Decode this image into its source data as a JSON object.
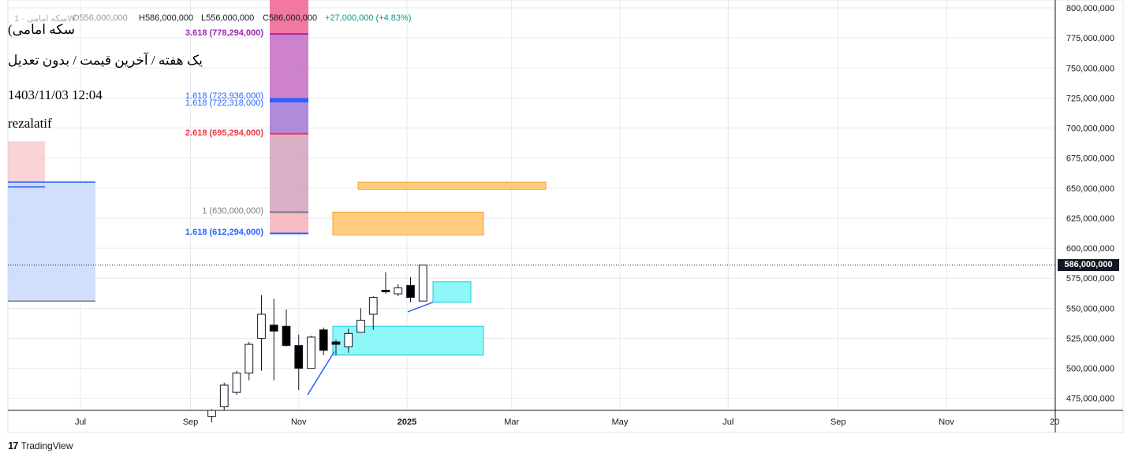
{
  "header": {
    "symbol_line": "سکه امامی · 1W",
    "ohlc_open": "O556,000,000",
    "ohlc_high": "H586,000,000",
    "ohlc_low": "L556,000,000",
    "ohlc_close": "C586,000,000",
    "change": "+27,000,000 (+4.83%)"
  },
  "overlay": {
    "title": "(سکه امامی",
    "subtitle": "یک هفته / آخرین قیمت / بدون تعدیل",
    "datetime": "1403/11/03 12:04",
    "author": "rezalatif"
  },
  "fib_labels": [
    {
      "text": "3.618 (778,294,000)",
      "color": "#9c27b0",
      "value": 778294000
    },
    {
      "text": "1.618 (723,936,000)",
      "color": "#2962ff",
      "value": 723936000
    },
    {
      "text": "1.618 (722,318,000)",
      "color": "#2962ff",
      "value": 722318000
    },
    {
      "text": "2.618 (695,294,000)",
      "color": "#f23645",
      "value": 695294000
    },
    {
      "text": "1 (630,000,000)",
      "color": "#787b86",
      "value": 630000000
    },
    {
      "text": "1.618 (612,294,000)",
      "color": "#2962ff",
      "value": 612294000
    }
  ],
  "colors": {
    "up_fill": "#ffffff",
    "down_fill": "#000000",
    "grid": "#e6e9ee",
    "orange_zone": "#ffcc80",
    "cyan_zone": "#8ef7f7",
    "blue_zone": "#c9d8fb",
    "current_price_bg": "#131722"
  },
  "chart_data": {
    "type": "candlestick",
    "ylim": [
      465000000,
      800000000
    ],
    "y_ticks": [
      475000000,
      500000000,
      525000000,
      550000000,
      575000000,
      600000000,
      625000000,
      650000000,
      675000000,
      700000000,
      725000000,
      750000000,
      775000000,
      800000000
    ],
    "y_tick_labels": [
      "475,000,000",
      "500,000,000",
      "525,000,000",
      "550,000,000",
      "575,000,000",
      "600,000,000",
      "625,000,000",
      "650,000,000",
      "675,000,000",
      "700,000,000",
      "725,000,000",
      "750,000,000",
      "775,000,000",
      "800,000,000"
    ],
    "x_ticks": [
      {
        "label": "Jul",
        "date": "2024-07-01",
        "bold": false
      },
      {
        "label": "Sep",
        "date": "2024-09-01",
        "bold": false
      },
      {
        "label": "Nov",
        "date": "2024-11-01",
        "bold": false
      },
      {
        "label": "2025",
        "date": "2025-01-01",
        "bold": true
      },
      {
        "label": "Mar",
        "date": "2025-03-01",
        "bold": false
      },
      {
        "label": "May",
        "date": "2025-05-01",
        "bold": false
      },
      {
        "label": "Jul",
        "date": "2025-07-01",
        "bold": false
      },
      {
        "label": "Sep",
        "date": "2025-09-01",
        "bold": false
      },
      {
        "label": "Nov",
        "date": "2025-11-01",
        "bold": false
      },
      {
        "label": "20",
        "date": "2026-01-01",
        "bold": false
      }
    ],
    "current_price": 586000000,
    "current_price_label": "586,000,000",
    "candles": [
      {
        "date": "2024-09-13",
        "o": 460000000,
        "h": 466000000,
        "l": 455000000,
        "c": 465000000
      },
      {
        "date": "2024-09-20",
        "o": 468000000,
        "h": 488000000,
        "l": 465000000,
        "c": 486000000
      },
      {
        "date": "2024-09-27",
        "o": 480000000,
        "h": 498000000,
        "l": 478000000,
        "c": 496000000
      },
      {
        "date": "2024-10-04",
        "o": 496000000,
        "h": 522000000,
        "l": 490000000,
        "c": 520000000
      },
      {
        "date": "2024-10-11",
        "o": 525000000,
        "h": 561000000,
        "l": 498000000,
        "c": 545000000
      },
      {
        "date": "2024-10-18",
        "o": 536000000,
        "h": 558000000,
        "l": 490000000,
        "c": 531000000
      },
      {
        "date": "2024-10-25",
        "o": 535000000,
        "h": 549000000,
        "l": 518000000,
        "c": 519000000
      },
      {
        "date": "2024-11-01",
        "o": 519000000,
        "h": 528000000,
        "l": 482000000,
        "c": 500000000
      },
      {
        "date": "2024-11-08",
        "o": 500000000,
        "h": 527000000,
        "l": 500000000,
        "c": 526000000
      },
      {
        "date": "2024-11-15",
        "o": 532000000,
        "h": 534000000,
        "l": 511000000,
        "c": 515000000
      },
      {
        "date": "2024-11-22",
        "o": 522000000,
        "h": 524000000,
        "l": 511000000,
        "c": 520000000
      },
      {
        "date": "2024-11-29",
        "o": 518000000,
        "h": 533000000,
        "l": 513000000,
        "c": 529000000
      },
      {
        "date": "2024-12-06",
        "o": 530000000,
        "h": 550000000,
        "l": 530000000,
        "c": 540000000
      },
      {
        "date": "2024-12-13",
        "o": 545000000,
        "h": 560000000,
        "l": 532000000,
        "c": 559000000
      },
      {
        "date": "2024-12-20",
        "o": 565000000,
        "h": 580000000,
        "l": 562000000,
        "c": 564000000
      },
      {
        "date": "2024-12-27",
        "o": 562000000,
        "h": 570000000,
        "l": 560000000,
        "c": 567000000
      },
      {
        "date": "2025-01-03",
        "o": 569000000,
        "h": 576000000,
        "l": 555000000,
        "c": 559000000
      },
      {
        "date": "2025-01-10",
        "o": 556000000,
        "h": 586000000,
        "l": 556000000,
        "c": 586000000
      }
    ]
  }
}
